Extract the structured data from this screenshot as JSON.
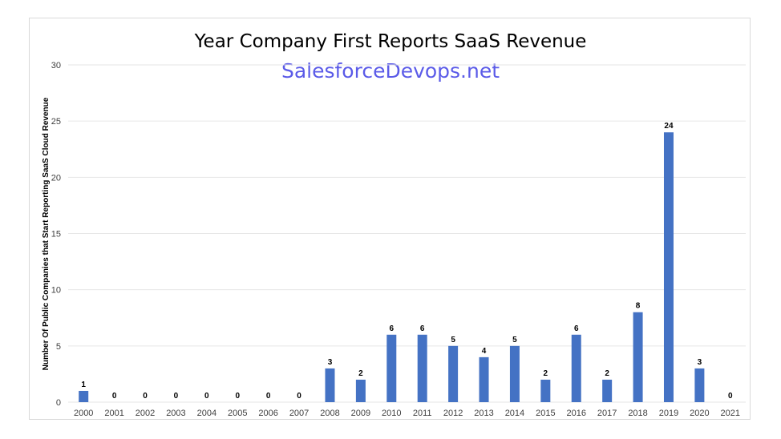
{
  "chart_data": {
    "type": "bar",
    "title": "Year Company First Reports SaaS Revenue",
    "subtitle": "SalesforceDevops.net",
    "xlabel": "",
    "ylabel": "Number Of Public Companies that Start Reporting SaaS Cloud Revenue",
    "categories": [
      "2000",
      "2001",
      "2002",
      "2003",
      "2004",
      "2005",
      "2006",
      "2007",
      "2008",
      "2009",
      "2010",
      "2011",
      "2012",
      "2013",
      "2014",
      "2015",
      "2016",
      "2017",
      "2018",
      "2019",
      "2020",
      "2021"
    ],
    "values": [
      1,
      0,
      0,
      0,
      0,
      0,
      0,
      0,
      3,
      2,
      6,
      6,
      5,
      4,
      5,
      2,
      6,
      2,
      8,
      24,
      3,
      0
    ],
    "ylim": [
      0,
      30
    ],
    "yticks": [
      0,
      5,
      10,
      15,
      20,
      25,
      30
    ],
    "grid": true,
    "legend": "none",
    "data_labels": true,
    "colors": {
      "bar": "#4472C4",
      "subtitle": "#5B5BE8",
      "grid": "#e6e6e6"
    }
  }
}
